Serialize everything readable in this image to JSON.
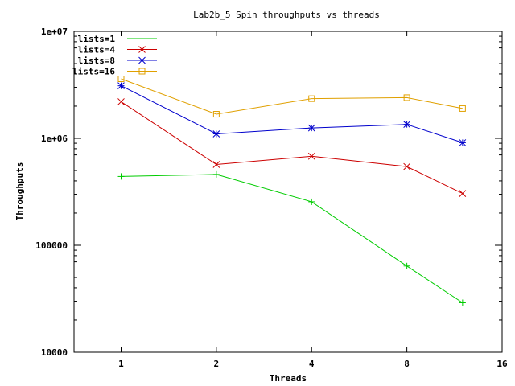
{
  "chart_data": {
    "type": "line",
    "title": "Lab2b_5  Spin throughputs vs threads",
    "xlabel": "Threads",
    "ylabel": "Throughputs",
    "xscale": "log2",
    "yscale": "log10",
    "xlim": [
      0.71,
      16
    ],
    "ylim": [
      10000,
      10000000
    ],
    "xticks": [
      1,
      2,
      4,
      8,
      16
    ],
    "xtick_labels": [
      "1",
      "2",
      "4",
      "8",
      "16"
    ],
    "yticks": [
      10000,
      100000,
      1000000,
      10000000
    ],
    "ytick_labels": [
      "10000",
      "100000",
      "1e+06",
      "1e+07"
    ],
    "grid": false,
    "legend_position": "top-left",
    "x": [
      1,
      2,
      4,
      8,
      12
    ],
    "series": [
      {
        "name": "lists=1",
        "color": "#00cc00",
        "marker": "plus",
        "values": [
          440000,
          460000,
          255000,
          64000,
          29000
        ]
      },
      {
        "name": "lists=4",
        "color": "#cc0000",
        "marker": "cross",
        "values": [
          2200000,
          570000,
          680000,
          545000,
          305000
        ]
      },
      {
        "name": "lists=8",
        "color": "#0000cc",
        "marker": "star",
        "values": [
          3100000,
          1100000,
          1250000,
          1350000,
          910000
        ]
      },
      {
        "name": "lists=16",
        "color": "#e0a000",
        "marker": "square",
        "values": [
          3600000,
          1680000,
          2350000,
          2400000,
          1900000
        ]
      }
    ]
  }
}
